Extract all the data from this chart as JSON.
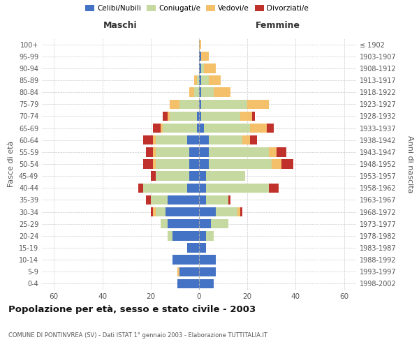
{
  "age_groups": [
    "0-4",
    "5-9",
    "10-14",
    "15-19",
    "20-24",
    "25-29",
    "30-34",
    "35-39",
    "40-44",
    "45-49",
    "50-54",
    "55-59",
    "60-64",
    "65-69",
    "70-74",
    "75-79",
    "80-84",
    "85-89",
    "90-94",
    "95-99",
    "100+"
  ],
  "birth_years": [
    "1998-2002",
    "1993-1997",
    "1988-1992",
    "1983-1987",
    "1978-1982",
    "1973-1977",
    "1968-1972",
    "1963-1967",
    "1958-1962",
    "1953-1957",
    "1948-1952",
    "1943-1947",
    "1938-1942",
    "1933-1937",
    "1928-1932",
    "1923-1927",
    "1918-1922",
    "1913-1917",
    "1908-1912",
    "1903-1907",
    "≤ 1902"
  ],
  "maschi": {
    "celibe": [
      9,
      8,
      11,
      5,
      11,
      13,
      14,
      13,
      5,
      4,
      4,
      4,
      5,
      1,
      1,
      0,
      0,
      0,
      0,
      0,
      0
    ],
    "coniugato": [
      0,
      0,
      0,
      0,
      2,
      3,
      4,
      7,
      18,
      14,
      14,
      14,
      13,
      14,
      11,
      8,
      2,
      1,
      0,
      0,
      0
    ],
    "vedovo": [
      0,
      1,
      0,
      0,
      0,
      0,
      1,
      0,
      0,
      0,
      1,
      1,
      1,
      1,
      1,
      4,
      2,
      1,
      0,
      0,
      0
    ],
    "divorziato": [
      0,
      0,
      0,
      0,
      0,
      0,
      1,
      2,
      2,
      2,
      4,
      3,
      4,
      3,
      2,
      0,
      0,
      0,
      0,
      0,
      0
    ]
  },
  "femmine": {
    "nubile": [
      6,
      7,
      7,
      3,
      3,
      5,
      7,
      3,
      3,
      3,
      4,
      4,
      4,
      2,
      1,
      1,
      1,
      1,
      1,
      1,
      0
    ],
    "coniugata": [
      0,
      0,
      0,
      0,
      3,
      7,
      9,
      9,
      26,
      16,
      26,
      25,
      14,
      19,
      16,
      19,
      5,
      3,
      1,
      0,
      0
    ],
    "vedova": [
      0,
      0,
      0,
      0,
      0,
      0,
      1,
      0,
      0,
      0,
      4,
      3,
      3,
      7,
      5,
      9,
      7,
      5,
      5,
      3,
      1
    ],
    "divorziata": [
      0,
      0,
      0,
      0,
      0,
      0,
      1,
      1,
      4,
      0,
      5,
      4,
      3,
      3,
      1,
      0,
      0,
      0,
      0,
      0,
      0
    ]
  },
  "colors": {
    "celibe": "#4472c4",
    "coniugato": "#c5d9a0",
    "vedovo": "#f5c06a",
    "divorziato": "#c0312b"
  },
  "xlim": 65,
  "title": "Popolazione per età, sesso e stato civile - 2003",
  "subtitle": "COMUNE DI PONTINVREA (SV) - Dati ISTAT 1° gennaio 2003 - Elaborazione TUTTITALIA.IT",
  "ylabel_left": "Fasce di età",
  "ylabel_right": "Anni di nascita",
  "xlabel_maschi": "Maschi",
  "xlabel_femmine": "Femmine",
  "legend_labels": [
    "Celibi/Nubili",
    "Coniugati/e",
    "Vedovi/e",
    "Divorziati/e"
  ],
  "grid_color": "#cccccc",
  "xticks": [
    -60,
    -40,
    -20,
    0,
    20,
    40,
    60
  ]
}
